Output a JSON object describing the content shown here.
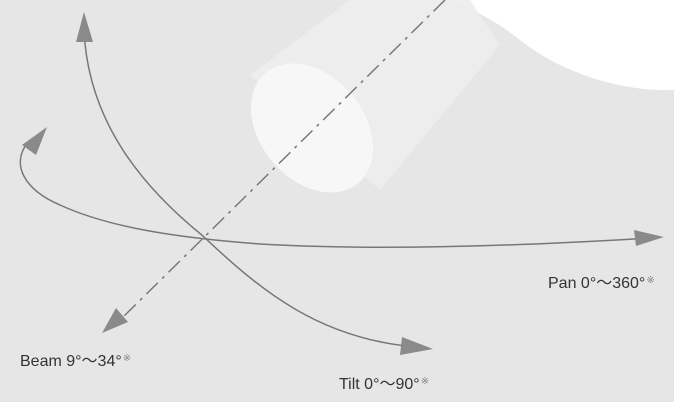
{
  "labels": {
    "pan": {
      "text": "Pan 0°〜360°",
      "mark": "※"
    },
    "beam": {
      "text": "Beam 9°〜34°",
      "mark": "※"
    },
    "tilt": {
      "text": "Tilt 0°〜90°",
      "mark": "※"
    }
  },
  "colors": {
    "background": "#e6e6e6",
    "stroke": "#777777",
    "arrowhead": "#8a8a8a",
    "lens": "#ffffff"
  }
}
